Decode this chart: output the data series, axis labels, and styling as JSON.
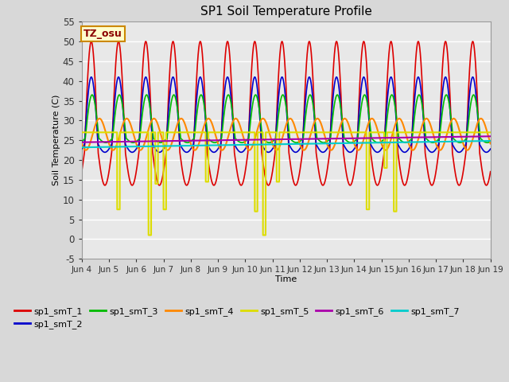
{
  "title": "SP1 Soil Temperature Profile",
  "xlabel": "Time",
  "ylabel": "Soil Temperature (C)",
  "ylim": [
    -5,
    55
  ],
  "yticks": [
    -5,
    0,
    5,
    10,
    15,
    20,
    25,
    30,
    35,
    40,
    45,
    50,
    55
  ],
  "background_color": "#d8d8d8",
  "axes_bg_color": "#e8e8e8",
  "grid_color": "#ffffff",
  "tz_label": "TZ_osu",
  "legend_entries": [
    "sp1_smT_1",
    "sp1_smT_2",
    "sp1_smT_3",
    "sp1_smT_4",
    "sp1_smT_5",
    "sp1_smT_6",
    "sp1_smT_7"
  ],
  "line_colors": [
    "#dd0000",
    "#0000cc",
    "#00bb00",
    "#ff8800",
    "#dddd00",
    "#aa00aa",
    "#00cccc"
  ],
  "x_start_day": 4,
  "x_end_day": 19,
  "x_tick_days": [
    4,
    5,
    6,
    7,
    8,
    9,
    10,
    11,
    12,
    13,
    14,
    15,
    16,
    17,
    18,
    19
  ],
  "x_tick_labels": [
    "Jun 4",
    "Jun 5",
    "Jun 6",
    "Jun 7",
    "Jun 8",
    "Jun 9",
    "Jun 10",
    "Jun 11",
    "Jun 12",
    "Jun 13",
    "Jun 14",
    "Jun 15",
    "Jun 16",
    "Jun 17",
    "Jun 18",
    "Jun 19"
  ]
}
